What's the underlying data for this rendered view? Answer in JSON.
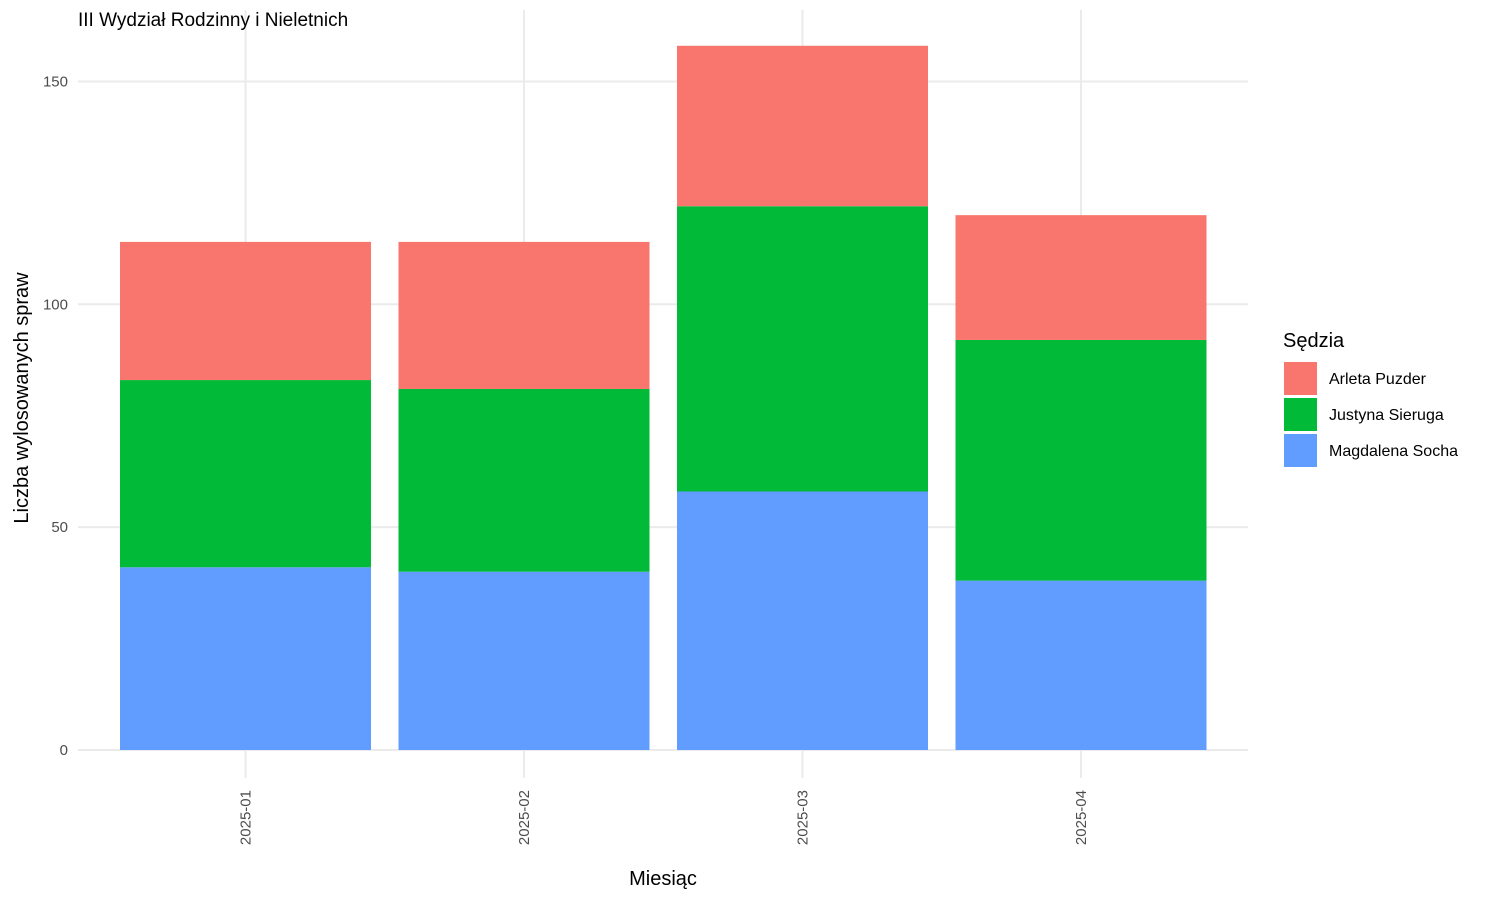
{
  "chart_data": {
    "type": "bar",
    "stacked": true,
    "title": "III Wydział Rodzinny i Nieletnich",
    "xlabel": "Miesiąc",
    "ylabel": "Liczba wylosowanych spraw",
    "categories": [
      "2025-01",
      "2025-02",
      "2025-03",
      "2025-04"
    ],
    "series": [
      {
        "name": "Magdalena Socha",
        "values": [
          41,
          40,
          58,
          38
        ],
        "color": "#619CFF"
      },
      {
        "name": "Justyna Sieruga",
        "values": [
          42,
          41,
          64,
          54
        ],
        "color": "#00BA38"
      },
      {
        "name": "Arleta Puzder",
        "values": [
          31,
          33,
          36,
          28
        ],
        "color": "#F8766D"
      }
    ],
    "ylim": [
      0,
      160
    ],
    "yticks": [
      0,
      50,
      100,
      150
    ],
    "grid": true,
    "legend": {
      "title": "Sędzia",
      "position": "right",
      "order": [
        "Arleta Puzder",
        "Justyna Sieruga",
        "Magdalena Socha"
      ]
    },
    "x_tick_rotation": "vertical"
  }
}
